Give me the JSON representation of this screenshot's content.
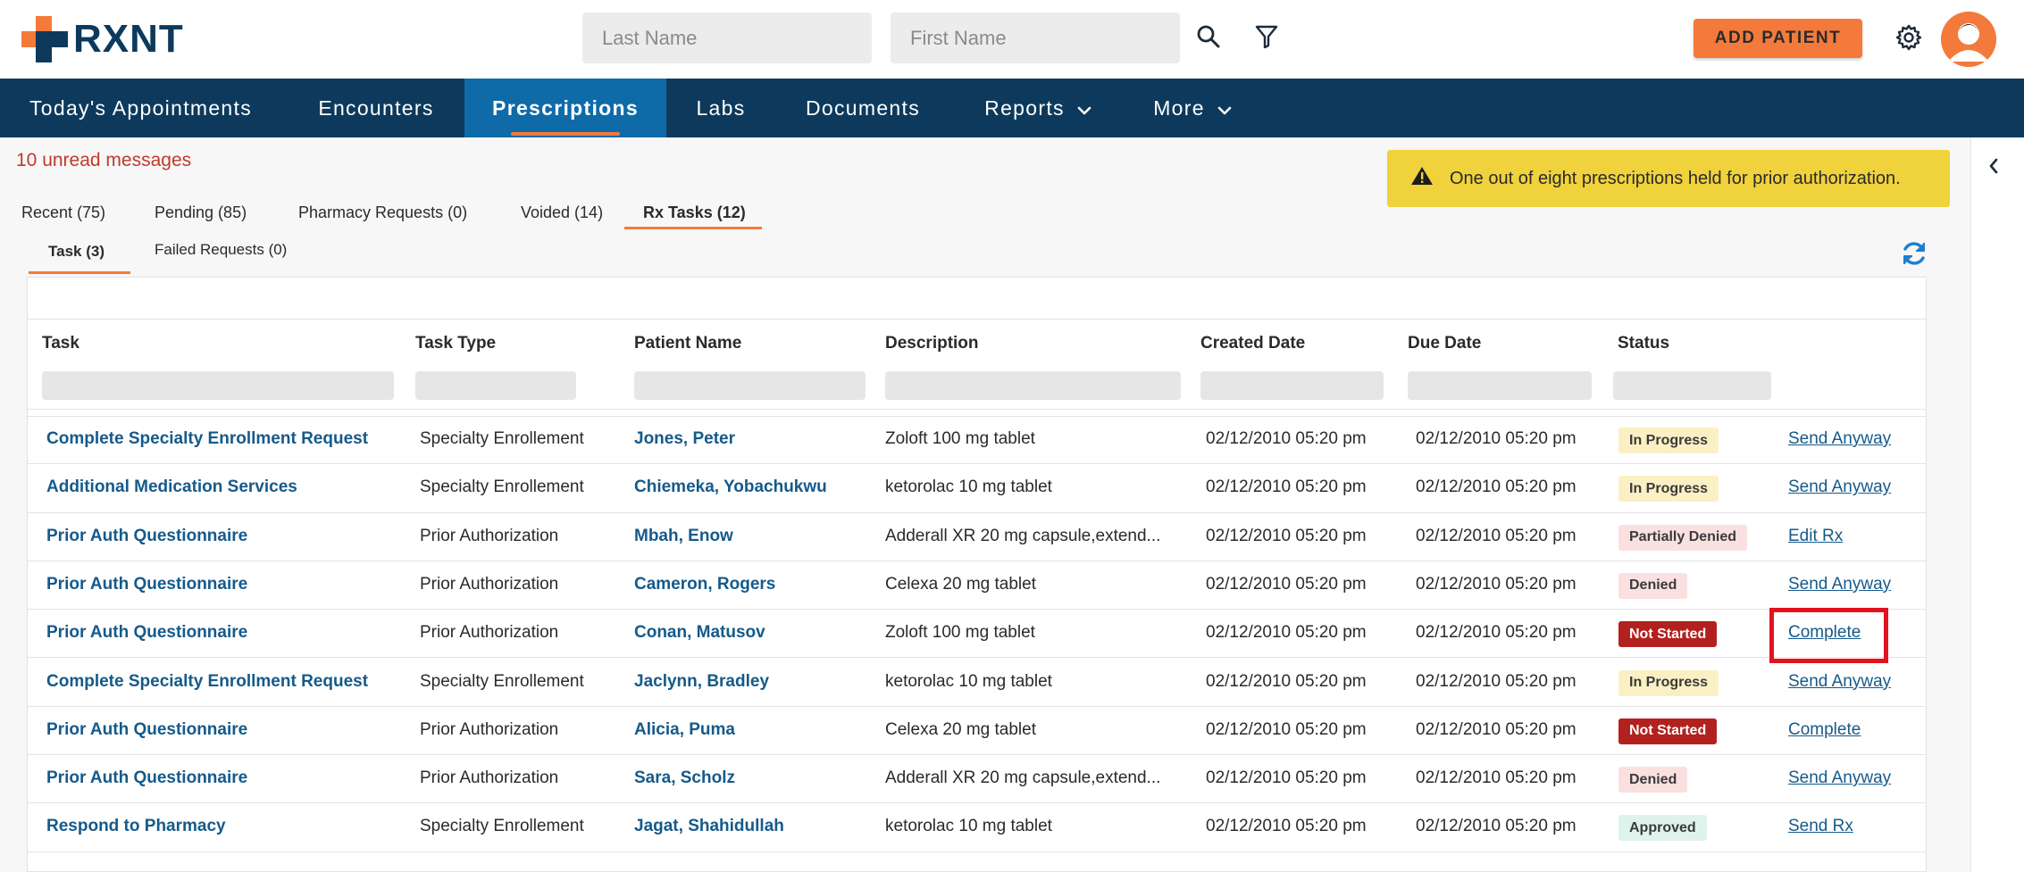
{
  "header": {
    "logo_text": "RXNT",
    "last_name_placeholder": "Last Name",
    "first_name_placeholder": "First Name",
    "add_patient_label": "ADD PATIENT",
    "accent_color": "#f47a3c",
    "brand_color": "#0d3a5c"
  },
  "nav": {
    "items": [
      {
        "label": "Today's Appointments"
      },
      {
        "label": "Encounters"
      },
      {
        "label": "Prescriptions"
      },
      {
        "label": "Labs"
      },
      {
        "label": "Documents"
      },
      {
        "label": "Reports"
      },
      {
        "label": "More"
      }
    ],
    "active": "Prescriptions"
  },
  "messages": {
    "unread": "10 unread messages"
  },
  "alert": {
    "text": "One out of eight prescriptions held for prior authorization.",
    "color": "#f0d23c"
  },
  "tabs": {
    "primary": [
      "Recent (75)",
      "Pending (85)",
      "Pharmacy Requests (0)",
      "Voided (14)",
      "Rx Tasks (12)"
    ],
    "secondary": [
      "Task (3)",
      "Failed Requests (0)"
    ]
  },
  "table": {
    "headers": [
      "Task",
      "Task Type",
      "Patient Name",
      "Description",
      "Created Date",
      "Due Date",
      "Status"
    ],
    "rows": [
      {
        "task": "Complete Specialty Enrollment Request",
        "type": "Specialty Enrollement",
        "patient": "Jones, Peter",
        "description": "Zoloft 100 mg tablet",
        "created": "02/12/2010 05:20 pm",
        "due": "02/12/2010 05:20 pm",
        "status": "In Progress",
        "action": "Send Anyway"
      },
      {
        "task": "Additional Medication Services",
        "type": "Specialty Enrollement",
        "patient": "Chiemeka, Yobachukwu",
        "description": "ketorolac 10 mg tablet",
        "created": "02/12/2010 05:20 pm",
        "due": "02/12/2010 05:20 pm",
        "status": "In Progress",
        "action": "Send Anyway"
      },
      {
        "task": "Prior Auth Questionnaire",
        "type": "Prior Authorization",
        "patient": "Mbah, Enow",
        "description": "Adderall XR 20 mg capsule,extend...",
        "created": "02/12/2010 05:20 pm",
        "due": "02/12/2010 05:20 pm",
        "status": "Partially Denied",
        "action": "Edit Rx"
      },
      {
        "task": "Prior Auth Questionnaire",
        "type": "Prior Authorization",
        "patient": "Cameron, Rogers",
        "description": "Celexa 20 mg tablet",
        "created": "02/12/2010 05:20 pm",
        "due": "02/12/2010 05:20 pm",
        "status": "Denied",
        "action": "Send Anyway"
      },
      {
        "task": "Prior Auth Questionnaire",
        "type": "Prior Authorization",
        "patient": "Conan, Matusov",
        "description": "Zoloft 100 mg tablet",
        "created": "02/12/2010 05:20 pm",
        "due": "02/12/2010 05:20 pm",
        "status": "Not Started",
        "action": "Complete"
      },
      {
        "task": "Complete Specialty Enrollment Request",
        "type": "Specialty Enrollement",
        "patient": "Jaclynn, Bradley",
        "description": "ketorolac 10 mg tablet",
        "created": "02/12/2010 05:20 pm",
        "due": "02/12/2010 05:20 pm",
        "status": "In Progress",
        "action": "Send Anyway"
      },
      {
        "task": "Prior Auth Questionnaire",
        "type": "Prior Authorization",
        "patient": "Alicia, Puma",
        "description": "Celexa 20 mg tablet",
        "created": "02/12/2010 05:20 pm",
        "due": "02/12/2010 05:20 pm",
        "status": "Not Started",
        "action": "Complete"
      },
      {
        "task": "Prior Auth Questionnaire",
        "type": "Prior Authorization",
        "patient": "Sara, Scholz",
        "description": "Adderall XR 20 mg capsule,extend...",
        "created": "02/12/2010 05:20 pm",
        "due": "02/12/2010 05:20 pm",
        "status": "Denied",
        "action": "Send Anyway"
      },
      {
        "task": "Respond to Pharmacy",
        "type": "Specialty Enrollement",
        "patient": "Jagat, Shahidullah",
        "description": "ketorolac 10 mg tablet",
        "created": "02/12/2010 05:20 pm",
        "due": "02/12/2010 05:20 pm",
        "status": "Approved",
        "action": "Send Rx"
      }
    ]
  },
  "status_colors": {
    "In Progress": {
      "bg": "#fbf0c4",
      "fg": "#3a3a3a"
    },
    "Partially Denied": {
      "bg": "#fbe0e0",
      "fg": "#3a3a3a"
    },
    "Denied": {
      "bg": "#fbe0e0",
      "fg": "#3a3a3a"
    },
    "Not Started": {
      "bg": "#b3211e",
      "fg": "#ffffff"
    },
    "Approved": {
      "bg": "#dff3ee",
      "fg": "#3a3a3a"
    }
  }
}
